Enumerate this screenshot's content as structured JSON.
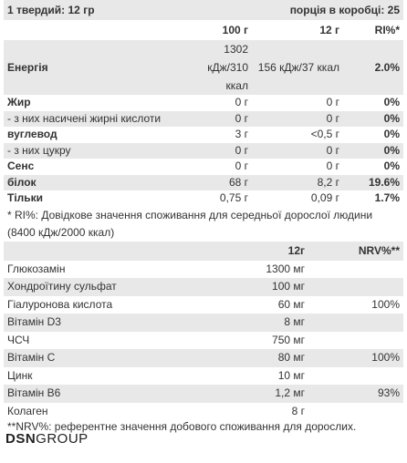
{
  "header": {
    "serving": "1 твердий: 12 гр",
    "per_box": "порція в коробці: 25"
  },
  "table1": {
    "columns": [
      "100 г",
      "12 г",
      "RI%*"
    ],
    "rows": [
      {
        "label": "Енергія",
        "bold": true,
        "cells": [
          "1302 кДж/310 ккал",
          "156 кДж/37 ккал",
          "2.0%"
        ]
      },
      {
        "label": "Жир",
        "bold": true,
        "cells": [
          "0 г",
          "0 г",
          "0%"
        ]
      },
      {
        "label": "- з них насичені жирні кислоти",
        "bold": false,
        "cells": [
          "0 г",
          "0 г",
          "0%"
        ]
      },
      {
        "label": "вуглевод",
        "bold": true,
        "cells": [
          "3 г",
          "<0,5 г",
          "0%"
        ]
      },
      {
        "label": "- з них цукру",
        "bold": false,
        "cells": [
          "0 г",
          "0 г",
          "0%"
        ]
      },
      {
        "label": "Сенс",
        "bold": true,
        "cells": [
          "0 г",
          "0 г",
          "0%"
        ]
      },
      {
        "label": "білок",
        "bold": true,
        "cells": [
          "68 г",
          "8,2 г",
          "19.6%"
        ]
      },
      {
        "label": "Тільки",
        "bold": true,
        "cells": [
          "0,75 г",
          "0,09 г",
          "1.7%"
        ]
      }
    ]
  },
  "footnote1": "* RI%: Довідкове значення споживання для середньої дорослої людини (8400 кДж/2000 ккал)",
  "table2": {
    "columns": [
      "12г",
      "NRV%**"
    ],
    "rows": [
      {
        "label": "Глюкозамін",
        "cells": [
          "1300 мг"
        ]
      },
      {
        "label": "Хондроїтину сульфат",
        "cells": [
          "100 мг"
        ]
      },
      {
        "label": "Гіалуронова кислота",
        "cells": [
          "60 мг",
          "100%"
        ]
      },
      {
        "label": "Вітамін D3",
        "cells": [
          "8 мг"
        ]
      },
      {
        "label": "ЧСЧ",
        "cells": [
          "750 мг"
        ]
      },
      {
        "label": "Вітамін C",
        "cells": [
          "80 мг",
          "100%"
        ]
      },
      {
        "label": "Цинк",
        "cells": [
          "10 мг"
        ]
      },
      {
        "label": "Вітамін B6",
        "cells": [
          "1,2 мг",
          "93%"
        ]
      },
      {
        "label": "Колаген",
        "cells": [
          "8 г"
        ]
      }
    ]
  },
  "footnote2": "**NRV%: референтне значення добового споживання для дорослих.",
  "logo": {
    "strong": "DSN",
    "light": "GROUP"
  }
}
